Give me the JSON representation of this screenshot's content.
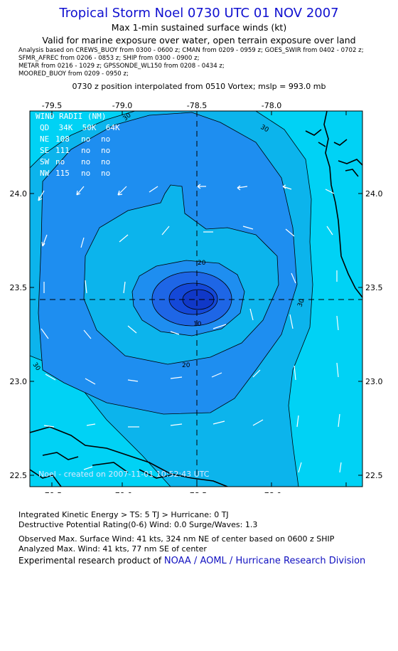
{
  "title": "Tropical Storm Noel 0730 UTC 01 NOV 2007",
  "subtitle": "Max 1-min sustained surface winds (kt)",
  "valid": "Valid for marine exposure over water, open terrain exposure over land",
  "analysis_lines": [
    "Analysis based on  CREWS_BUOY from 0300 - 0600 z;  CMAN from 0209 - 0959 z;  GOES_SWIR from 0402 - 0702 z;",
    "SFMR_AFREC from 0206 - 0853 z;  SHIP from 0300 - 0900 z;",
    "METAR from 0216 - 1029 z;  GPSSONDE_WL150 from 0208 - 0434 z;",
    "MOORED_BUOY from 0209 - 0950 z;"
  ],
  "position_note": "0730 z position interpolated from 0510 Vortex; mslp = 993.0 mb",
  "map": {
    "lon_range": [
      -79.65,
      -77.55
    ],
    "lat_range": [
      22.42,
      24.43
    ],
    "lon_ticks": [
      "-79.5",
      "-79.0",
      "-78.5",
      "-78.0"
    ],
    "lat_ticks": [
      "22.5",
      "23.0",
      "23.5",
      "24.0"
    ],
    "center": {
      "lon": -78.65,
      "lat": 23.44
    },
    "contour_labels": [
      "30",
      "30",
      "20",
      "10",
      "20",
      "30",
      "30"
    ],
    "colors": {
      "outer": "#00d2f5",
      "band30": "#0cb4ec",
      "band20": "#1e8ef0",
      "band10": "#1e66e6",
      "band0": "#1448d8",
      "land": "#000000"
    },
    "wind_radii": {
      "header": "WIND RADII (NM)",
      "columns": "QD  34K  50K  64K",
      "rows": [
        {
          "qd": "NE",
          "v34": "108",
          "v50": "no",
          "v64": "no"
        },
        {
          "qd": "SE",
          "v34": "111",
          "v50": "no",
          "v64": "no"
        },
        {
          "qd": "SW",
          "v34": "no",
          "v50": "no",
          "v64": "no"
        },
        {
          "qd": "NW",
          "v34": "115",
          "v50": "no",
          "v64": "no"
        }
      ]
    },
    "created": "Noel - created on 2007-11-01 10:52:43 UTC"
  },
  "footer": {
    "line1": "Integrated Kinetic Energy > TS: 5 TJ   > Hurricane: 0 TJ",
    "line2": "Destructive Potential Rating(0-6)   Wind: 0.0 Surge/Waves: 1.3",
    "line3": "Observed Max. Surface Wind: 41 kts, 324 nm NE of center based on 0600 z SHIP",
    "line4": "Analyzed Max. Wind: 41 kts, 77 nm SE of center",
    "line5_prefix": "Experimental research product of ",
    "line5_org": "NOAA / AOML / Hurricane Research Division"
  }
}
